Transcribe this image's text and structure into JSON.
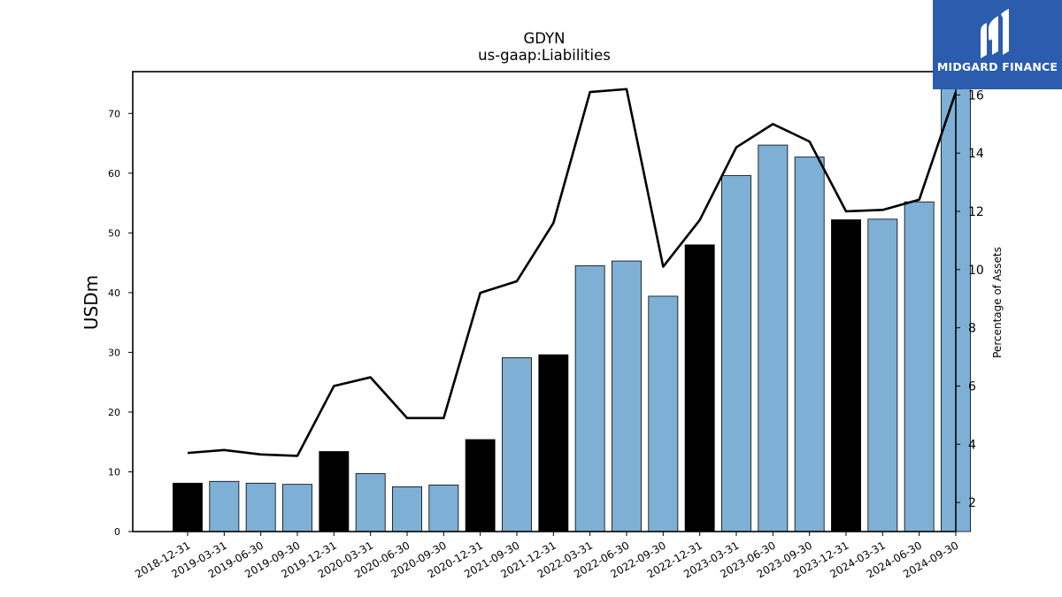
{
  "chart_data": {
    "type": "bar",
    "title": "GDYN",
    "subtitle": "us-gaap:Liabilities",
    "ylabel": "USDm",
    "y2label": "Percentage of Assets",
    "ylim": [
      0,
      77
    ],
    "y2lim": [
      1,
      16.8
    ],
    "yticks": [
      0,
      10,
      20,
      30,
      40,
      50,
      60,
      70
    ],
    "y2ticks": [
      2,
      4,
      6,
      8,
      10,
      12,
      14,
      16
    ],
    "categories": [
      "2018-12-31",
      "2019-03-31",
      "2019-06-30",
      "2019-09-30",
      "2019-12-31",
      "2020-03-31",
      "2020-06-30",
      "2020-09-30",
      "2020-12-31",
      "2021-09-30",
      "2021-12-31",
      "2022-03-31",
      "2022-06-30",
      "2022-09-30",
      "2022-12-31",
      "2023-03-31",
      "2023-06-30",
      "2023-09-30",
      "2023-12-31",
      "2024-03-31",
      "2024-06-30",
      "2024-09-30"
    ],
    "series": [
      {
        "kind": "bar",
        "values": [
          8.1,
          8.4,
          8.1,
          7.9,
          13.4,
          9.7,
          7.5,
          7.8,
          15.4,
          29.1,
          29.6,
          44.5,
          45.3,
          39.4,
          48.0,
          59.6,
          64.7,
          62.7,
          52.2,
          52.3,
          55.2,
          77.0
        ],
        "annual": [
          true,
          false,
          false,
          false,
          true,
          false,
          false,
          false,
          true,
          false,
          true,
          false,
          false,
          false,
          true,
          false,
          false,
          false,
          true,
          false,
          false,
          false
        ]
      },
      {
        "kind": "line",
        "axis": "right",
        "values": [
          3.7,
          3.8,
          3.65,
          3.6,
          6.0,
          6.3,
          4.9,
          4.9,
          9.2,
          9.6,
          11.6,
          16.1,
          16.2,
          10.1,
          11.7,
          14.2,
          15.0,
          14.4,
          12.0,
          12.05,
          12.4,
          16.1
        ]
      }
    ],
    "colors": {
      "annual_bar": "#000000",
      "quarter_bar": "#7eb0d5",
      "line": "#000000"
    }
  },
  "logo": {
    "text": "MIDGARD FINANCE",
    "bg": "#2b5cae"
  }
}
